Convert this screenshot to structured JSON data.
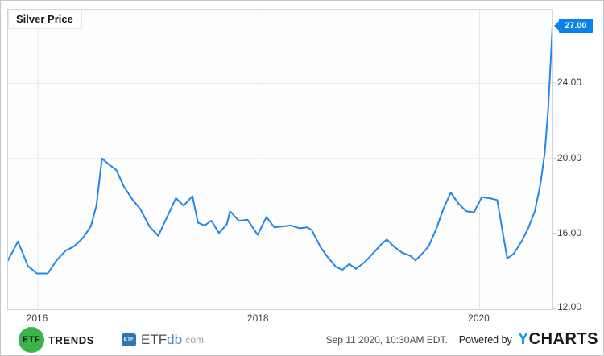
{
  "header": {
    "title": "Silver Price"
  },
  "chart_data": {
    "type": "line",
    "title": "Silver Price",
    "xlabel": "",
    "ylabel": "",
    "x_range": [
      2015.73,
      2020.66
    ],
    "y_range": [
      12,
      27.9
    ],
    "grid": true,
    "x_ticks": [
      {
        "t": 2016,
        "label": "2016"
      },
      {
        "t": 2018,
        "label": "2018"
      },
      {
        "t": 2020,
        "label": "2020"
      }
    ],
    "y_ticks": [
      {
        "v": 12,
        "label": "12.00"
      },
      {
        "v": 16,
        "label": "16.00"
      },
      {
        "v": 20,
        "label": "20.00"
      },
      {
        "v": 24,
        "label": "24.00"
      }
    ],
    "colors": {
      "line": "#2287e8",
      "grid": "#e7e7e7",
      "badge": "#0b82e8",
      "plot_border": "#d6d6d6"
    },
    "last_price_badge": {
      "label": "27.00",
      "value": 27.0
    },
    "series": [
      {
        "name": "Silver Price",
        "points": [
          [
            2015.73,
            14.6
          ],
          [
            2015.82,
            15.6
          ],
          [
            2015.91,
            14.3
          ],
          [
            2015.99,
            13.9
          ],
          [
            2016.09,
            13.9
          ],
          [
            2016.17,
            14.6
          ],
          [
            2016.25,
            15.1
          ],
          [
            2016.33,
            15.35
          ],
          [
            2016.41,
            15.8
          ],
          [
            2016.48,
            16.4
          ],
          [
            2016.53,
            17.5
          ],
          [
            2016.58,
            20.0
          ],
          [
            2016.64,
            19.7
          ],
          [
            2016.71,
            19.4
          ],
          [
            2016.78,
            18.5
          ],
          [
            2016.86,
            17.8
          ],
          [
            2016.93,
            17.3
          ],
          [
            2017.01,
            16.4
          ],
          [
            2017.09,
            15.9
          ],
          [
            2017.17,
            16.9
          ],
          [
            2017.25,
            17.9
          ],
          [
            2017.32,
            17.5
          ],
          [
            2017.4,
            18.0
          ],
          [
            2017.45,
            16.6
          ],
          [
            2017.51,
            16.45
          ],
          [
            2017.57,
            16.7
          ],
          [
            2017.64,
            16.05
          ],
          [
            2017.71,
            16.5
          ],
          [
            2017.74,
            17.2
          ],
          [
            2017.82,
            16.7
          ],
          [
            2017.9,
            16.75
          ],
          [
            2017.99,
            15.95
          ],
          [
            2018.07,
            16.9
          ],
          [
            2018.14,
            16.35
          ],
          [
            2018.21,
            16.4
          ],
          [
            2018.29,
            16.45
          ],
          [
            2018.37,
            16.3
          ],
          [
            2018.44,
            16.35
          ],
          [
            2018.48,
            16.2
          ],
          [
            2018.56,
            15.3
          ],
          [
            2018.62,
            14.8
          ],
          [
            2018.7,
            14.25
          ],
          [
            2018.76,
            14.1
          ],
          [
            2018.82,
            14.4
          ],
          [
            2018.88,
            14.15
          ],
          [
            2018.96,
            14.5
          ],
          [
            2019.04,
            15.0
          ],
          [
            2019.11,
            15.45
          ],
          [
            2019.16,
            15.7
          ],
          [
            2019.23,
            15.3
          ],
          [
            2019.3,
            15.0
          ],
          [
            2019.37,
            14.85
          ],
          [
            2019.42,
            14.6
          ],
          [
            2019.48,
            14.95
          ],
          [
            2019.54,
            15.35
          ],
          [
            2019.61,
            16.3
          ],
          [
            2019.67,
            17.3
          ],
          [
            2019.74,
            18.2
          ],
          [
            2019.81,
            17.6
          ],
          [
            2019.88,
            17.2
          ],
          [
            2019.95,
            17.15
          ],
          [
            2020.02,
            17.95
          ],
          [
            2020.09,
            17.9
          ],
          [
            2020.16,
            17.8
          ],
          [
            2020.25,
            14.7
          ],
          [
            2020.31,
            14.95
          ],
          [
            2020.38,
            15.6
          ],
          [
            2020.44,
            16.3
          ],
          [
            2020.5,
            17.2
          ],
          [
            2020.55,
            18.6
          ],
          [
            2020.59,
            20.3
          ],
          [
            2020.62,
            22.5
          ],
          [
            2020.66,
            27.0
          ]
        ]
      }
    ]
  },
  "footer": {
    "etf_trends": {
      "circle_text": "ETF",
      "wordmark": "TRENDS",
      "green": "#3bb54a"
    },
    "etfdb": {
      "box_text": "ETF",
      "name_etf": "ETF",
      "name_db": "db",
      "name_com": ".com",
      "blue": "#2e76b8",
      "db_blue": "#4a86c8"
    },
    "timestamp": "Sep 11 2020, 10:30AM EDT.",
    "powered_by": "Powered by",
    "ycharts": {
      "y": "Y",
      "charts": "CHARTS",
      "y_color": "#0e9ce8"
    }
  }
}
